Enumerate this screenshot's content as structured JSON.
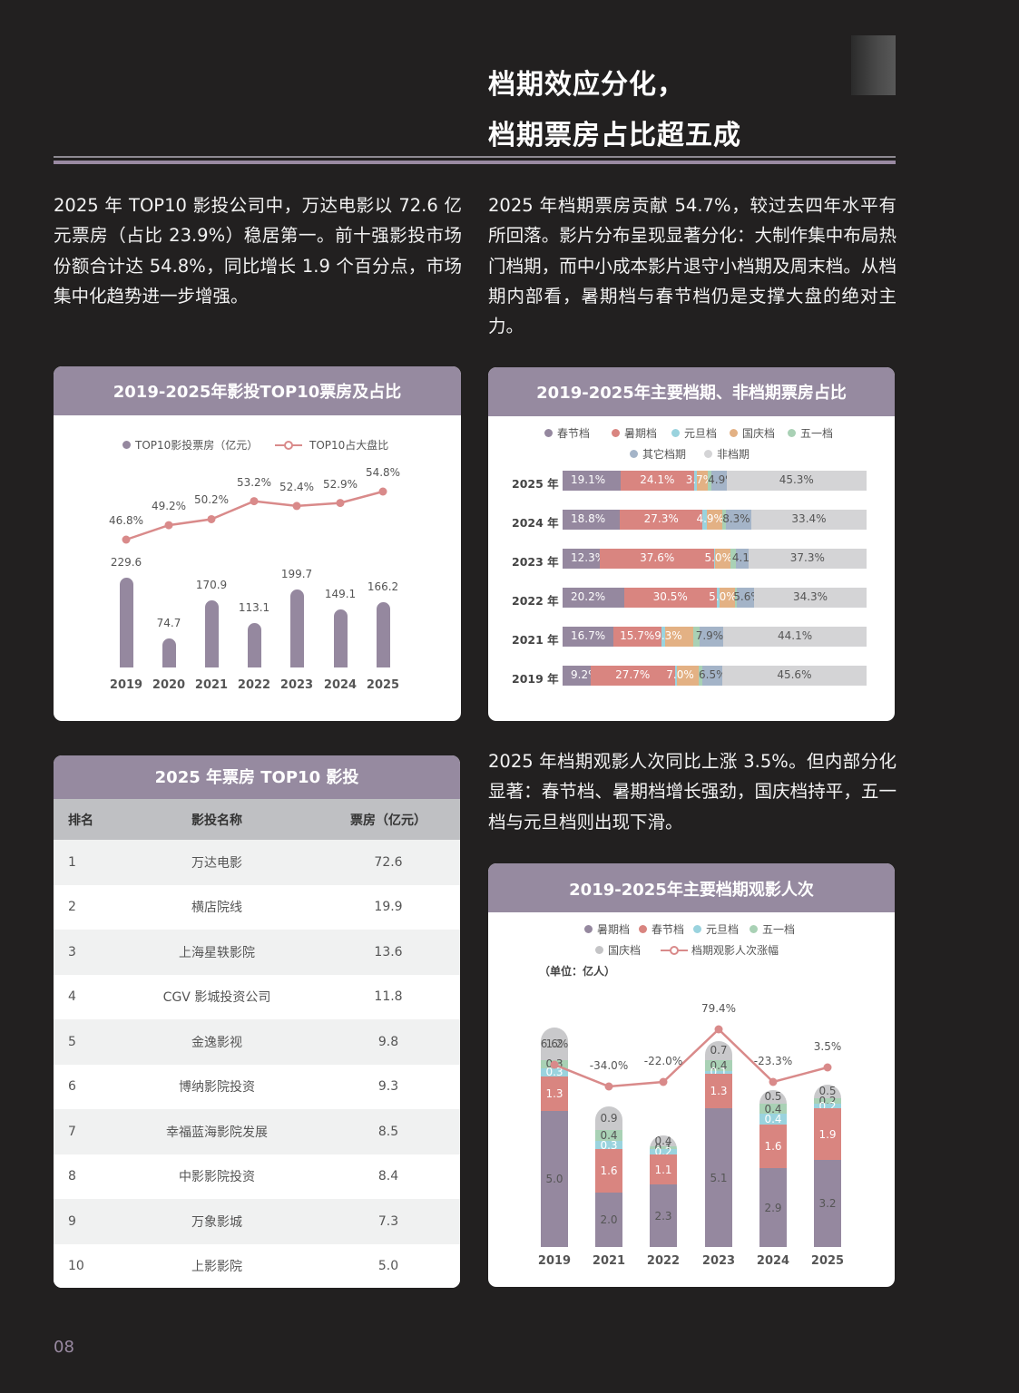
{
  "header": {
    "title_line1": "档期效应分化，",
    "title_line2": "档期票房占比超五成"
  },
  "paragraphs": {
    "p1": "2025 年 TOP10 影投公司中，万达电影以 72.6 亿元票房（占比 23.9%）稳居第一。前十强影投市场份额合计达 54.8%，同比增长 1.9 个百分点，市场集中化趋势进一步增强。",
    "p2": "2025 年档期票房贡献 54.7%，较过去四年水平有所回落。影片分布呈现显著分化：大制作集中布局热门档期，而中小成本影片退守小档期及周末档。从档期内部看，暑期档与春节档仍是支撑大盘的绝对主力。",
    "p3": "2025 年档期观影人次同比上涨 3.5%。但内部分化显著：春节档、暑期档增长强劲，国庆档持平，五一档与元旦档则出现下滑。"
  },
  "colors": {
    "accent_purple": "#968aa0",
    "bar_purple": "#95889f",
    "line_pink": "#d98a8a",
    "spring": "#95889f",
    "summer": "#d98580",
    "newyear": "#9ad3de",
    "national": "#e3b184",
    "mayday": "#a9d1b5",
    "other": "#a4b4c8",
    "non": "#d4d4d6"
  },
  "chart_data": [
    {
      "type": "bar+line",
      "title": "2019-2025年影投TOP10票房及占比",
      "categories": [
        "2019",
        "2020",
        "2021",
        "2022",
        "2023",
        "2024",
        "2025"
      ],
      "series": [
        {
          "name": "TOP10影投票房（亿元）",
          "type": "bar",
          "values": [
            229.6,
            74.7,
            170.9,
            113.1,
            199.7,
            149.1,
            166.2
          ]
        },
        {
          "name": "TOP10占大盘比",
          "type": "line",
          "values": [
            46.8,
            49.2,
            50.2,
            53.2,
            52.4,
            52.9,
            54.8
          ],
          "labels": [
            "46.8%",
            "49.2%",
            "50.2%",
            "53.2%",
            "52.4%",
            "52.9%",
            "54.8%"
          ]
        }
      ],
      "legend": [
        "TOP10影投票房（亿元）",
        "TOP10占大盘比"
      ],
      "legend_position": "top",
      "grid": false
    },
    {
      "type": "bar",
      "orientation": "horizontal-stacked-100",
      "title": "2019-2025年主要档期、非档期票房占比",
      "categories": [
        "2025 年",
        "2024 年",
        "2023 年",
        "2022 年",
        "2021 年",
        "2019 年"
      ],
      "series": [
        {
          "name": "春节档",
          "values": [
            19.1,
            18.8,
            12.3,
            20.2,
            16.7,
            9.2
          ]
        },
        {
          "name": "暑期档",
          "values": [
            24.1,
            27.3,
            37.6,
            30.5,
            15.7,
            27.7
          ]
        },
        {
          "name": "元旦档",
          "values": [
            0.9,
            1.5,
            0.4,
            1.0,
            1.4,
            0.8
          ]
        },
        {
          "name": "国庆档",
          "values": [
            3.7,
            4.9,
            5.0,
            5.0,
            9.3,
            7.0
          ]
        },
        {
          "name": "五一档",
          "values": [
            1.2,
            1.3,
            1.7,
            0.7,
            1.9,
            1.3
          ]
        },
        {
          "name": "其它档期",
          "values": [
            4.9,
            8.3,
            4.1,
            5.6,
            7.9,
            6.5
          ]
        },
        {
          "name": "非档期",
          "values": [
            45.3,
            33.4,
            37.3,
            34.3,
            44.1,
            45.6
          ]
        }
      ],
      "legend": [
        "春节档",
        "暑期档",
        "元旦档",
        "国庆档",
        "五一档",
        "其它档期",
        "非档期"
      ],
      "legend_position": "top"
    },
    {
      "type": "table",
      "title": "2025 年票房 TOP10 影投",
      "columns": [
        "排名",
        "影投名称",
        "票房（亿元）"
      ],
      "rows": [
        [
          "1",
          "万达电影",
          "72.6"
        ],
        [
          "2",
          "横店院线",
          "19.9"
        ],
        [
          "3",
          "上海星轶影院",
          "13.6"
        ],
        [
          "4",
          "CGV 影城投资公司",
          "11.8"
        ],
        [
          "5",
          "金逸影视",
          "9.8"
        ],
        [
          "6",
          "博纳影院投资",
          "9.3"
        ],
        [
          "7",
          "幸福蓝海影院发展",
          "8.5"
        ],
        [
          "8",
          "中影影院投资",
          "8.4"
        ],
        [
          "9",
          "万象影城",
          "7.3"
        ],
        [
          "10",
          "上影影院",
          "5.0"
        ]
      ]
    },
    {
      "type": "bar+line",
      "orientation": "vertical-stacked",
      "title": "2019-2025年主要档期观影人次",
      "unit": "（单位：亿人）",
      "categories": [
        "2019",
        "2021",
        "2022",
        "2023",
        "2024",
        "2025"
      ],
      "series": [
        {
          "name": "暑期档",
          "values": [
            5.0,
            2.0,
            2.3,
            5.1,
            2.9,
            3.2
          ]
        },
        {
          "name": "春节档",
          "values": [
            1.3,
            1.6,
            1.1,
            1.3,
            1.6,
            1.9
          ]
        },
        {
          "name": "元旦档",
          "values": [
            0.3,
            0.3,
            0.2,
            0.1,
            0.4,
            0.2
          ]
        },
        {
          "name": "五一档",
          "values": [
            0.3,
            0.4,
            0.1,
            0.4,
            0.4,
            0.2
          ]
        },
        {
          "name": "国庆档",
          "values": [
            1.2,
            0.9,
            0.4,
            0.7,
            0.5,
            0.5
          ]
        },
        {
          "name": "档期观影人次涨幅",
          "type": "line",
          "values": [
            6.6,
            -34.0,
            -22.0,
            79.4,
            -23.3,
            3.5
          ],
          "labels": [
            "6.6%",
            "-34.0%",
            "-22.0%",
            "79.4%",
            "-23.3%",
            "3.5%"
          ]
        }
      ],
      "legend": [
        "暑期档",
        "春节档",
        "元旦档",
        "五一档",
        "国庆档",
        "档期观影人次涨幅"
      ],
      "legend_position": "top"
    }
  ],
  "cards": {
    "c1": {
      "title": "2019-2025年影投TOP10票房及占比",
      "legend_bar": "TOP10影投票房（亿元）",
      "legend_line": "TOP10占大盘比"
    },
    "c2": {
      "title": "2019-2025年主要档期、非档期票房占比"
    },
    "c3": {
      "title": "2025 年票房 TOP10 影投",
      "col_rank": "排名",
      "col_name": "影投名称",
      "col_box": "票房（亿元）"
    },
    "c4": {
      "title": "2019-2025年主要档期观影人次",
      "unit": "（单位：亿人）"
    }
  },
  "footer": {
    "page_number": "08"
  }
}
